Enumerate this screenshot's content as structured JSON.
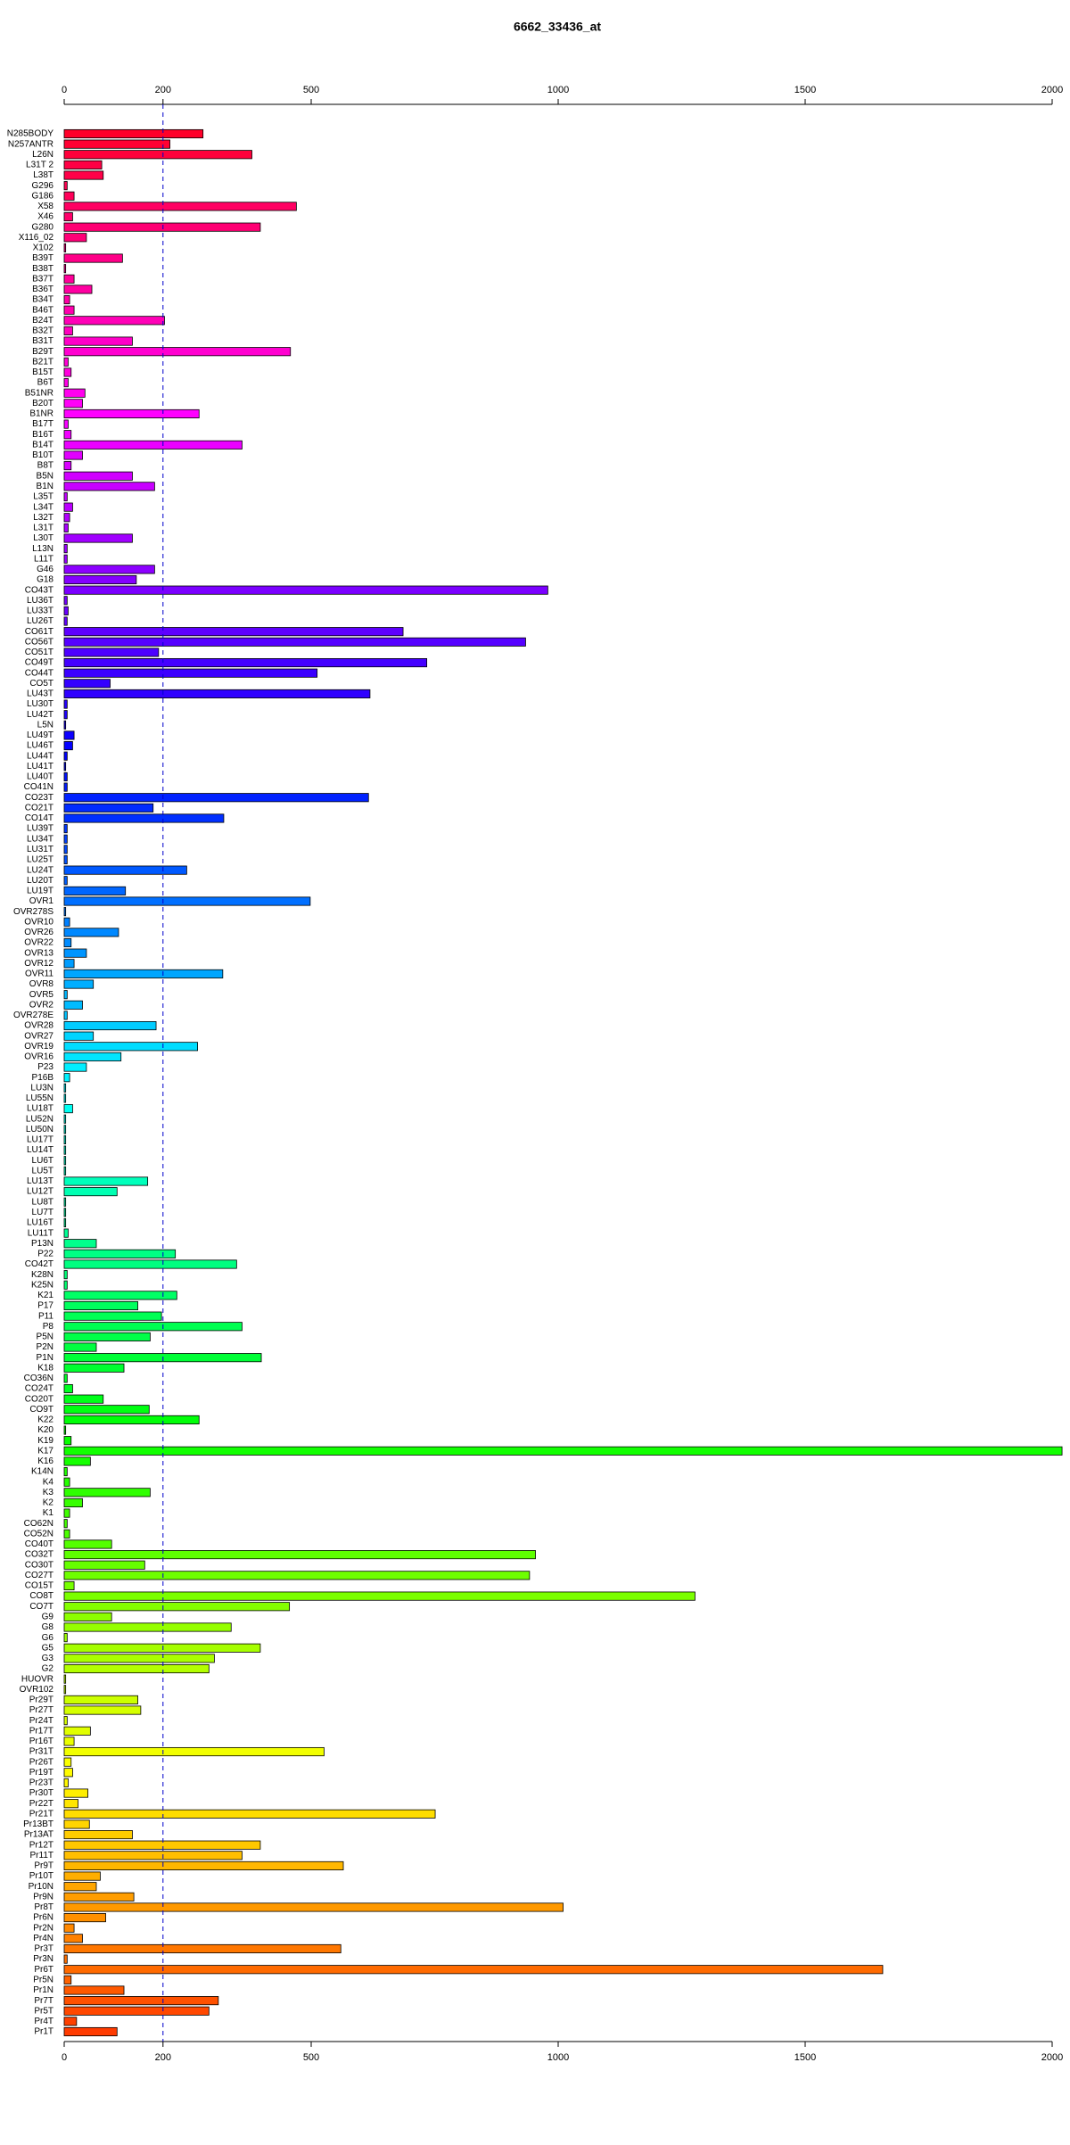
{
  "chart_data": {
    "type": "barh",
    "title": "6662_33436_at",
    "categories": [
      "N285BODY",
      "N257ANTR",
      "L26N",
      "L31T 2",
      "L38T",
      "G296",
      "G186",
      "X58",
      "X46",
      "G280",
      "X116_02",
      "X102",
      "B39T",
      "B38T",
      "B37T",
      "B36T",
      "B34T",
      "B46T",
      "B24T",
      "B32T",
      "B31T",
      "B29T",
      "B21T",
      "B15T",
      "B6T",
      "B51NR",
      "B20T",
      "B1NR",
      "B17T",
      "B16T",
      "B14T",
      "B10T",
      "B8T",
      "B5N",
      "B1N",
      "L35T",
      "L34T",
      "L32T",
      "L31T",
      "L30T",
      "L13N",
      "L11T",
      "G46",
      "G18",
      "CO43T",
      "LU36T",
      "LU33T",
      "LU26T",
      "CO61T",
      "CO56T",
      "CO51T",
      "CO49T",
      "CO44T",
      "CO5T",
      "LU43T",
      "LU30T",
      "LU42T",
      "L5N",
      "LU49T",
      "LU46T",
      "LU44T",
      "LU41T",
      "LU40T",
      "CO41N",
      "CO23T",
      "CO21T",
      "CO14T",
      "LU39T",
      "LU34T",
      "LU31T",
      "LU25T",
      "LU24T",
      "LU20T",
      "LU19T",
      "OVR1",
      "OVR278S",
      "OVR10",
      "OVR26",
      "OVR22",
      "OVR13",
      "OVR12",
      "OVR11",
      "OVR8",
      "OVR5",
      "OVR2",
      "OVR278E",
      "OVR28",
      "OVR27",
      "OVR19",
      "OVR16",
      "P23",
      "P16B",
      "LU3N",
      "LU55N",
      "LU18T",
      "LU52N",
      "LU50N",
      "LU17T",
      "LU14T",
      "LU6T",
      "LU5T",
      "LU13T",
      "LU12T",
      "LU8T",
      "LU7T",
      "LU16T",
      "LU11T",
      "P13N",
      "P22",
      "CO42T",
      "K28N",
      "K25N",
      "K21",
      "P17",
      "P11",
      "P8",
      "P5N",
      "P2N",
      "P1N",
      "K18",
      "CO36N",
      "CO24T",
      "CO20T",
      "CO9T",
      "K22",
      "K20",
      "K19",
      "K17",
      "K16",
      "K14N",
      "K4",
      "K3",
      "K2",
      "K1",
      "CO62N",
      "CO52N",
      "CO40T",
      "CO32T",
      "CO30T",
      "CO27T",
      "CO15T",
      "CO8T",
      "CO7T",
      "G9",
      "G8",
      "G6",
      "G5",
      "G3",
      "G2",
      "HUOVR",
      "OVR102",
      "Pr29T",
      "Pr27T",
      "Pr24T",
      "Pr17T",
      "Pr16T",
      "Pr31T",
      "Pr26T",
      "Pr19T",
      "Pr23T",
      "Pr30T",
      "Pr22T",
      "Pr21T",
      "Pr13BT",
      "Pr13AT",
      "Pr12T",
      "Pr11T",
      "Pr9T",
      "Pr10T",
      "Pr10N",
      "Pr9N",
      "Pr8T",
      "Pr6N",
      "Pr2N",
      "Pr4N",
      "Pr3T",
      "Pr3N",
      "Pr6T",
      "Pr5N",
      "Pr1N",
      "Pr7T",
      "Pr5T",
      "Pr4T",
      "Pr1T"
    ],
    "values": [
      281,
      214,
      380,
      76,
      79,
      6,
      20,
      470,
      17,
      397,
      45,
      3,
      118,
      3,
      20,
      56,
      11,
      20,
      203,
      17,
      138,
      458,
      8,
      14,
      8,
      42,
      37,
      273,
      8,
      14,
      360,
      37,
      14,
      138,
      183,
      6,
      17,
      11,
      8,
      138,
      6,
      6,
      183,
      146,
      979,
      6,
      8,
      6,
      686,
      934,
      191,
      734,
      512,
      93,
      619,
      6,
      6,
      3,
      20,
      17,
      6,
      3,
      6,
      6,
      616,
      180,
      323,
      6,
      6,
      6,
      6,
      248,
      6,
      124,
      498,
      3,
      11,
      110,
      14,
      45,
      20,
      321,
      59,
      6,
      37,
      6,
      186,
      59,
      270,
      115,
      45,
      11,
      3,
      3,
      17,
      3,
      3,
      3,
      3,
      3,
      3,
      169,
      107,
      3,
      3,
      3,
      8,
      65,
      225,
      349,
      6,
      6,
      228,
      149,
      197,
      360,
      174,
      65,
      399,
      121,
      6,
      17,
      79,
      172,
      273,
      3,
      14,
      2020,
      53,
      6,
      11,
      174,
      37,
      11,
      6,
      11,
      96,
      954,
      163,
      942,
      20,
      1277,
      456,
      96,
      338,
      6,
      397,
      304,
      293,
      3,
      3,
      149,
      155,
      6,
      53,
      20,
      526,
      14,
      17,
      8,
      48,
      28,
      751,
      51,
      138,
      397,
      360,
      565,
      73,
      65,
      141,
      1010,
      84,
      20,
      37,
      560,
      6,
      1657,
      14,
      121,
      312,
      293,
      25,
      107
    ],
    "colors": [
      "hsl(350,100%,50%)",
      "hsl(348,100%,50%)",
      "hsl(346,100%,50%)",
      "hsl(344,100%,50%)",
      "hsl(343,100%,50%)",
      "hsl(341,100%,50%)",
      "hsl(339,100%,50%)",
      "hsl(337,100%,50%)",
      "hsl(335,100%,50%)",
      "hsl(333,100%,50%)",
      "hsl(332,100%,50%)",
      "hsl(330,100%,50%)",
      "hsl(328,100%,50%)",
      "hsl(326,100%,50%)",
      "hsl(324,100%,50%)",
      "hsl(322,100%,50%)",
      "hsl(321,100%,50%)",
      "hsl(319,100%,50%)",
      "hsl(317,100%,50%)",
      "hsl(315,100%,50%)",
      "hsl(313,100%,50%)",
      "hsl(311,100%,50%)",
      "hsl(310,100%,50%)",
      "hsl(308,100%,50%)",
      "hsl(306,100%,50%)",
      "hsl(304,100%,50%)",
      "hsl(302,100%,50%)",
      "hsl(300,100%,50%)",
      "hsl(298,100%,50%)",
      "hsl(297,100%,50%)",
      "hsl(295,100%,50%)",
      "hsl(293,100%,50%)",
      "hsl(291,100%,50%)",
      "hsl(289,100%,50%)",
      "hsl(287,100%,50%)",
      "hsl(286,100%,50%)",
      "hsl(284,100%,50%)",
      "hsl(282,100%,50%)",
      "hsl(280,100%,50%)",
      "hsl(278,100%,50%)",
      "hsl(276,100%,50%)",
      "hsl(275,100%,50%)",
      "hsl(273,100%,50%)",
      "hsl(271,100%,50%)",
      "hsl(269,100%,50%)",
      "hsl(267,100%,50%)",
      "hsl(265,100%,50%)",
      "hsl(263,100%,50%)",
      "hsl(262,100%,50%)",
      "hsl(260,100%,50%)",
      "hsl(258,100%,50%)",
      "hsl(256,100%,50%)",
      "hsl(254,100%,50%)",
      "hsl(252,100%,50%)",
      "hsl(251,100%,50%)",
      "hsl(249,100%,50%)",
      "hsl(247,100%,50%)",
      "hsl(245,100%,50%)",
      "hsl(243,100%,50%)",
      "hsl(241,100%,50%)",
      "hsl(240,100%,50%)",
      "hsl(238,100%,50%)",
      "hsl(236,100%,50%)",
      "hsl(234,100%,50%)",
      "hsl(232,100%,50%)",
      "hsl(230,100%,50%)",
      "hsl(229,100%,50%)",
      "hsl(227,100%,50%)",
      "hsl(225,100%,50%)",
      "hsl(223,100%,50%)",
      "hsl(221,100%,50%)",
      "hsl(219,100%,50%)",
      "hsl(218,100%,50%)",
      "hsl(216,100%,50%)",
      "hsl(214,100%,50%)",
      "hsl(212,100%,50%)",
      "hsl(210,100%,50%)",
      "hsl(208,100%,50%)",
      "hsl(207,100%,50%)",
      "hsl(205,100%,50%)",
      "hsl(203,100%,50%)",
      "hsl(201,100%,50%)",
      "hsl(199,100%,50%)",
      "hsl(197,100%,50%)",
      "hsl(196,100%,50%)",
      "hsl(194,100%,50%)",
      "hsl(192,100%,50%)",
      "hsl(190,100%,50%)",
      "hsl(188,100%,50%)",
      "hsl(186,100%,50%)",
      "hsl(184,100%,50%)",
      "hsl(183,100%,50%)",
      "hsl(181,100%,50%)",
      "hsl(179,100%,50%)",
      "hsl(177,100%,50%)",
      "hsl(175,100%,50%)",
      "hsl(173,100%,50%)",
      "hsl(172,100%,50%)",
      "hsl(170,100%,50%)",
      "hsl(168,100%,50%)",
      "hsl(166,100%,50%)",
      "hsl(164,100%,50%)",
      "hsl(162,100%,50%)",
      "hsl(161,100%,50%)",
      "hsl(159,100%,50%)",
      "hsl(157,100%,50%)",
      "hsl(155,100%,50%)",
      "hsl(153,100%,50%)",
      "hsl(151,100%,50%)",
      "hsl(150,100%,50%)",
      "hsl(148,100%,50%)",
      "hsl(146,100%,50%)",
      "hsl(144,100%,50%)",
      "hsl(142,100%,50%)",
      "hsl(140,100%,50%)",
      "hsl(139,100%,50%)",
      "hsl(137,100%,50%)",
      "hsl(135,100%,50%)",
      "hsl(133,100%,50%)",
      "hsl(131,100%,50%)",
      "hsl(129,100%,50%)",
      "hsl(128,100%,50%)",
      "hsl(126,100%,50%)",
      "hsl(124,100%,50%)",
      "hsl(122,100%,50%)",
      "hsl(120,100%,50%)",
      "hsl(118,100%,50%)",
      "hsl(116,100%,50%)",
      "hsl(115,100%,50%)",
      "hsl(113,100%,50%)",
      "hsl(111,100%,50%)",
      "hsl(109,100%,50%)",
      "hsl(107,100%,50%)",
      "hsl(105,100%,50%)",
      "hsl(104,100%,50%)",
      "hsl(102,100%,50%)",
      "hsl(100,100%,50%)",
      "hsl(98,100%,50%)",
      "hsl(96,100%,50%)",
      "hsl(94,100%,50%)",
      "hsl(92,100%,50%)",
      "hsl(91,100%,50%)",
      "hsl(89,100%,50%)",
      "hsl(87,100%,50%)",
      "hsl(85,100%,50%)",
      "hsl(83,100%,50%)",
      "hsl(81,100%,50%)",
      "hsl(80,100%,50%)",
      "hsl(78,100%,50%)",
      "hsl(76,100%,50%)",
      "hsl(74,100%,50%)",
      "hsl(72,100%,50%)",
      "hsl(70,100%,50%)",
      "hsl(69,100%,50%)",
      "hsl(67,100%,50%)",
      "hsl(65,100%,50%)",
      "hsl(63,100%,50%)",
      "hsl(61,100%,50%)",
      "hsl(59,100%,50%)",
      "hsl(58,100%,50%)",
      "hsl(56,100%,50%)",
      "hsl(54,100%,50%)",
      "hsl(52,100%,50%)",
      "hsl(50,100%,50%)",
      "hsl(48,100%,50%)",
      "hsl(47,100%,50%)",
      "hsl(45,100%,50%)",
      "hsl(43,100%,50%)",
      "hsl(41,100%,50%)",
      "hsl(39,100%,50%)",
      "hsl(37,100%,50%)",
      "hsl(36,100%,50%)",
      "hsl(34,100%,50%)",
      "hsl(32,100%,50%)",
      "hsl(30,100%,50%)",
      "hsl(28,100%,50%)",
      "hsl(26,100%,50%)",
      "hsl(25,100%,50%)",
      "hsl(23,100%,50%)",
      "hsl(21,100%,50%)",
      "hsl(19,100%,50%)",
      "hsl(17,100%,50%)",
      "hsl(15,100%,50%)",
      "hsl(14,100%,50%)"
    ],
    "xlim": [
      0,
      2000
    ],
    "xticks": [
      0,
      200,
      500,
      1000,
      1500,
      2000
    ],
    "reference_line": 200
  }
}
